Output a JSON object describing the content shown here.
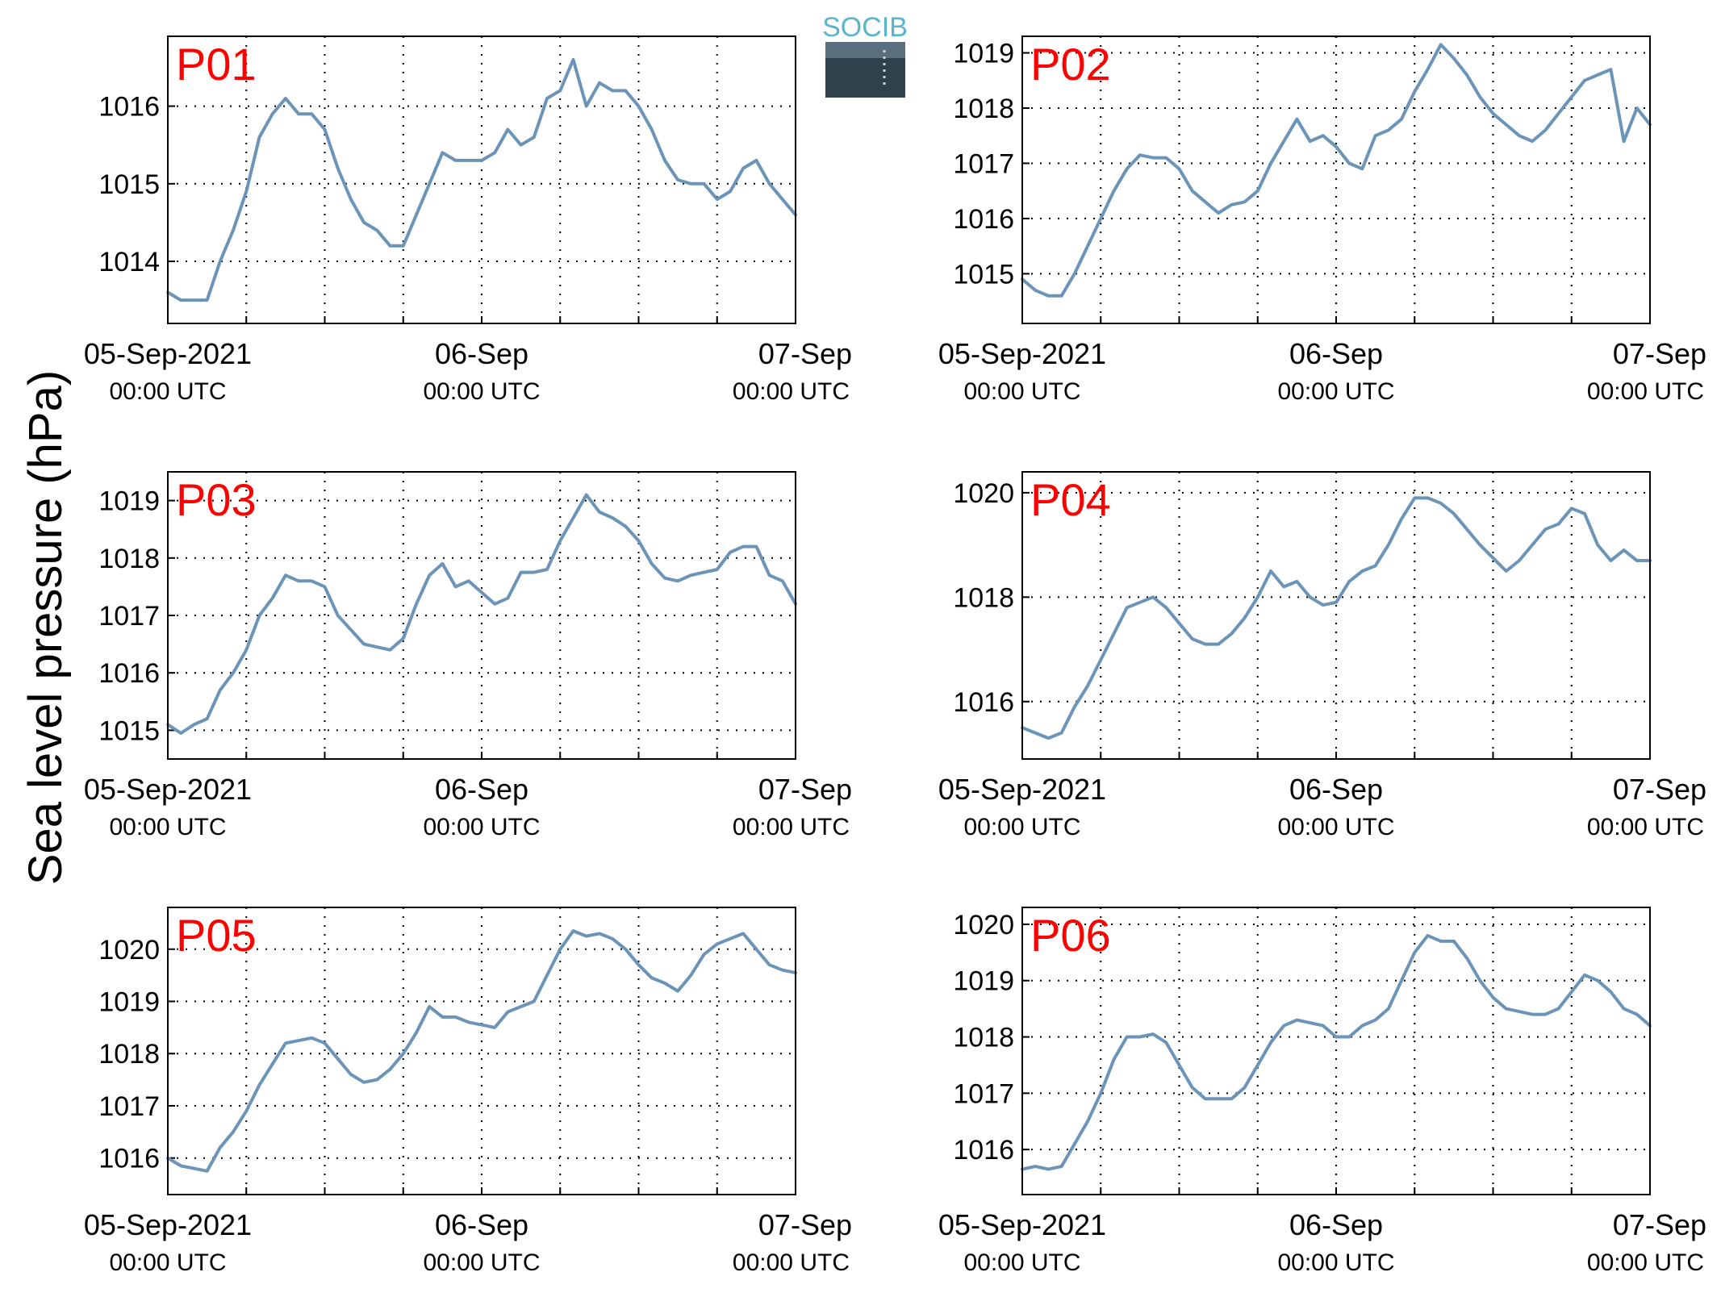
{
  "ylabel": "Sea level pressure (hPa)",
  "logo": {
    "text": "SOCIB",
    "colors": [
      "#5ab4cc",
      "#31414c"
    ]
  },
  "line_color": "#6b94b8",
  "label_color": "#ff0000",
  "x_ticks": [
    {
      "main": "05-Sep-2021",
      "sub": "00:00 UTC",
      "x": 0
    },
    {
      "main": "06-Sep",
      "sub": "00:00 UTC",
      "x": 24
    },
    {
      "main": "07-Sep",
      "sub": "00:00 UTC",
      "x": 48
    }
  ],
  "chart_data": [
    {
      "type": "line",
      "label": "P01",
      "xlim": [
        0,
        48
      ],
      "ylim": [
        1013.2,
        1016.9
      ],
      "grid": true,
      "yticks": [
        1014,
        1015,
        1016
      ],
      "x": [
        0,
        1,
        2,
        3,
        4,
        5,
        6,
        7,
        8,
        9,
        10,
        11,
        12,
        13,
        14,
        15,
        16,
        17,
        18,
        19,
        20,
        21,
        22,
        23,
        24,
        25,
        26,
        27,
        28,
        29,
        30,
        31,
        32,
        33,
        34,
        35,
        36,
        37,
        38,
        39,
        40,
        41,
        42,
        43,
        44,
        45,
        46,
        47,
        48
      ],
      "values": [
        1013.6,
        1013.5,
        1013.5,
        1013.5,
        1014.0,
        1014.4,
        1014.9,
        1015.6,
        1015.9,
        1016.1,
        1015.9,
        1015.9,
        1015.7,
        1015.2,
        1014.8,
        1014.5,
        1014.4,
        1014.2,
        1014.2,
        1014.6,
        1015.0,
        1015.4,
        1015.3,
        1015.3,
        1015.3,
        1015.4,
        1015.7,
        1015.5,
        1015.6,
        1016.1,
        1016.2,
        1016.6,
        1016.0,
        1016.3,
        1016.2,
        1016.2,
        1016.0,
        1015.7,
        1015.3,
        1015.05,
        1015.0,
        1015.0,
        1014.8,
        1014.9,
        1015.2,
        1015.3,
        1015.0,
        1014.8,
        1014.6
      ]
    },
    {
      "type": "line",
      "label": "P02",
      "xlim": [
        0,
        48
      ],
      "ylim": [
        1014.1,
        1019.3
      ],
      "grid": true,
      "yticks": [
        1015,
        1016,
        1017,
        1018,
        1019
      ],
      "x": [
        0,
        1,
        2,
        3,
        4,
        5,
        6,
        7,
        8,
        9,
        10,
        11,
        12,
        13,
        14,
        15,
        16,
        17,
        18,
        19,
        20,
        21,
        22,
        23,
        24,
        25,
        26,
        27,
        28,
        29,
        30,
        31,
        32,
        33,
        34,
        35,
        36,
        37,
        38,
        39,
        40,
        41,
        42,
        43,
        44,
        45,
        46,
        47,
        48
      ],
      "values": [
        1014.9,
        1014.7,
        1014.6,
        1014.6,
        1015.0,
        1015.5,
        1016.0,
        1016.5,
        1016.9,
        1017.15,
        1017.1,
        1017.1,
        1016.9,
        1016.5,
        1016.3,
        1016.1,
        1016.25,
        1016.3,
        1016.5,
        1017.0,
        1017.4,
        1017.8,
        1017.4,
        1017.5,
        1017.3,
        1017.0,
        1016.9,
        1017.5,
        1017.6,
        1017.8,
        1018.3,
        1018.7,
        1019.15,
        1018.9,
        1018.6,
        1018.2,
        1017.9,
        1017.7,
        1017.5,
        1017.4,
        1017.6,
        1017.9,
        1018.2,
        1018.5,
        1018.6,
        1018.7,
        1017.4,
        1018.0,
        1017.7
      ]
    },
    {
      "type": "line",
      "label": "P03",
      "xlim": [
        0,
        48
      ],
      "ylim": [
        1014.5,
        1019.5
      ],
      "grid": true,
      "yticks": [
        1015,
        1016,
        1017,
        1018,
        1019
      ],
      "x": [
        0,
        1,
        2,
        3,
        4,
        5,
        6,
        7,
        8,
        9,
        10,
        11,
        12,
        13,
        14,
        15,
        16,
        17,
        18,
        19,
        20,
        21,
        22,
        23,
        24,
        25,
        26,
        27,
        28,
        29,
        30,
        31,
        32,
        33,
        34,
        35,
        36,
        37,
        38,
        39,
        40,
        41,
        42,
        43,
        44,
        45,
        46,
        47,
        48
      ],
      "values": [
        1015.1,
        1014.95,
        1015.1,
        1015.2,
        1015.7,
        1016.0,
        1016.4,
        1017.0,
        1017.3,
        1017.7,
        1017.6,
        1017.6,
        1017.5,
        1017.0,
        1016.75,
        1016.5,
        1016.45,
        1016.4,
        1016.6,
        1017.2,
        1017.7,
        1017.9,
        1017.5,
        1017.6,
        1017.4,
        1017.2,
        1017.3,
        1017.75,
        1017.75,
        1017.8,
        1018.3,
        1018.7,
        1019.1,
        1018.8,
        1018.7,
        1018.55,
        1018.3,
        1017.9,
        1017.65,
        1017.6,
        1017.7,
        1017.75,
        1017.8,
        1018.1,
        1018.2,
        1018.2,
        1017.7,
        1017.6,
        1017.2
      ]
    },
    {
      "type": "line",
      "label": "P04",
      "xlim": [
        0,
        48
      ],
      "ylim": [
        1014.9,
        1020.4
      ],
      "grid": true,
      "yticks": [
        1016,
        1018,
        1020
      ],
      "x": [
        0,
        1,
        2,
        3,
        4,
        5,
        6,
        7,
        8,
        9,
        10,
        11,
        12,
        13,
        14,
        15,
        16,
        17,
        18,
        19,
        20,
        21,
        22,
        23,
        24,
        25,
        26,
        27,
        28,
        29,
        30,
        31,
        32,
        33,
        34,
        35,
        36,
        37,
        38,
        39,
        40,
        41,
        42,
        43,
        44,
        45,
        46,
        47,
        48
      ],
      "values": [
        1015.5,
        1015.4,
        1015.3,
        1015.4,
        1015.9,
        1016.3,
        1016.8,
        1017.3,
        1017.8,
        1017.9,
        1018.0,
        1017.8,
        1017.5,
        1017.2,
        1017.1,
        1017.1,
        1017.3,
        1017.6,
        1018.0,
        1018.5,
        1018.2,
        1018.3,
        1018.0,
        1017.85,
        1017.9,
        1018.3,
        1018.5,
        1018.6,
        1019.0,
        1019.5,
        1019.9,
        1019.9,
        1019.8,
        1019.6,
        1019.3,
        1019.0,
        1018.75,
        1018.5,
        1018.7,
        1019.0,
        1019.3,
        1019.4,
        1019.7,
        1019.6,
        1019.0,
        1018.7,
        1018.9,
        1018.7,
        1018.7
      ]
    },
    {
      "type": "line",
      "label": "P05",
      "xlim": [
        0,
        48
      ],
      "ylim": [
        1015.3,
        1020.8
      ],
      "grid": true,
      "yticks": [
        1016,
        1017,
        1018,
        1019,
        1020
      ],
      "x": [
        0,
        1,
        2,
        3,
        4,
        5,
        6,
        7,
        8,
        9,
        10,
        11,
        12,
        13,
        14,
        15,
        16,
        17,
        18,
        19,
        20,
        21,
        22,
        23,
        24,
        25,
        26,
        27,
        28,
        29,
        30,
        31,
        32,
        33,
        34,
        35,
        36,
        37,
        38,
        39,
        40,
        41,
        42,
        43,
        44,
        45,
        46,
        47,
        48
      ],
      "values": [
        1016.0,
        1015.85,
        1015.8,
        1015.75,
        1016.2,
        1016.5,
        1016.9,
        1017.4,
        1017.8,
        1018.2,
        1018.25,
        1018.3,
        1018.2,
        1017.9,
        1017.6,
        1017.45,
        1017.5,
        1017.7,
        1018.0,
        1018.4,
        1018.9,
        1018.7,
        1018.7,
        1018.6,
        1018.55,
        1018.5,
        1018.8,
        1018.9,
        1019.0,
        1019.5,
        1020.0,
        1020.35,
        1020.25,
        1020.3,
        1020.2,
        1020.0,
        1019.7,
        1019.45,
        1019.35,
        1019.2,
        1019.5,
        1019.9,
        1020.1,
        1020.2,
        1020.3,
        1020.0,
        1019.7,
        1019.6,
        1019.55
      ]
    },
    {
      "type": "line",
      "label": "P06",
      "xlim": [
        0,
        48
      ],
      "ylim": [
        1015.2,
        1020.3
      ],
      "grid": true,
      "yticks": [
        1016,
        1017,
        1018,
        1019,
        1020
      ],
      "x": [
        0,
        1,
        2,
        3,
        4,
        5,
        6,
        7,
        8,
        9,
        10,
        11,
        12,
        13,
        14,
        15,
        16,
        17,
        18,
        19,
        20,
        21,
        22,
        23,
        24,
        25,
        26,
        27,
        28,
        29,
        30,
        31,
        32,
        33,
        34,
        35,
        36,
        37,
        38,
        39,
        40,
        41,
        42,
        43,
        44,
        45,
        46,
        47,
        48
      ],
      "values": [
        1015.65,
        1015.7,
        1015.65,
        1015.7,
        1016.1,
        1016.5,
        1017.0,
        1017.6,
        1018.0,
        1018.0,
        1018.05,
        1017.9,
        1017.5,
        1017.1,
        1016.9,
        1016.9,
        1016.9,
        1017.1,
        1017.5,
        1017.9,
        1018.2,
        1018.3,
        1018.25,
        1018.2,
        1018.0,
        1018.0,
        1018.2,
        1018.3,
        1018.5,
        1019.0,
        1019.5,
        1019.8,
        1019.7,
        1019.7,
        1019.4,
        1019.0,
        1018.7,
        1018.5,
        1018.45,
        1018.4,
        1018.4,
        1018.5,
        1018.8,
        1019.1,
        1019.0,
        1018.8,
        1018.5,
        1018.4,
        1018.2
      ]
    }
  ]
}
